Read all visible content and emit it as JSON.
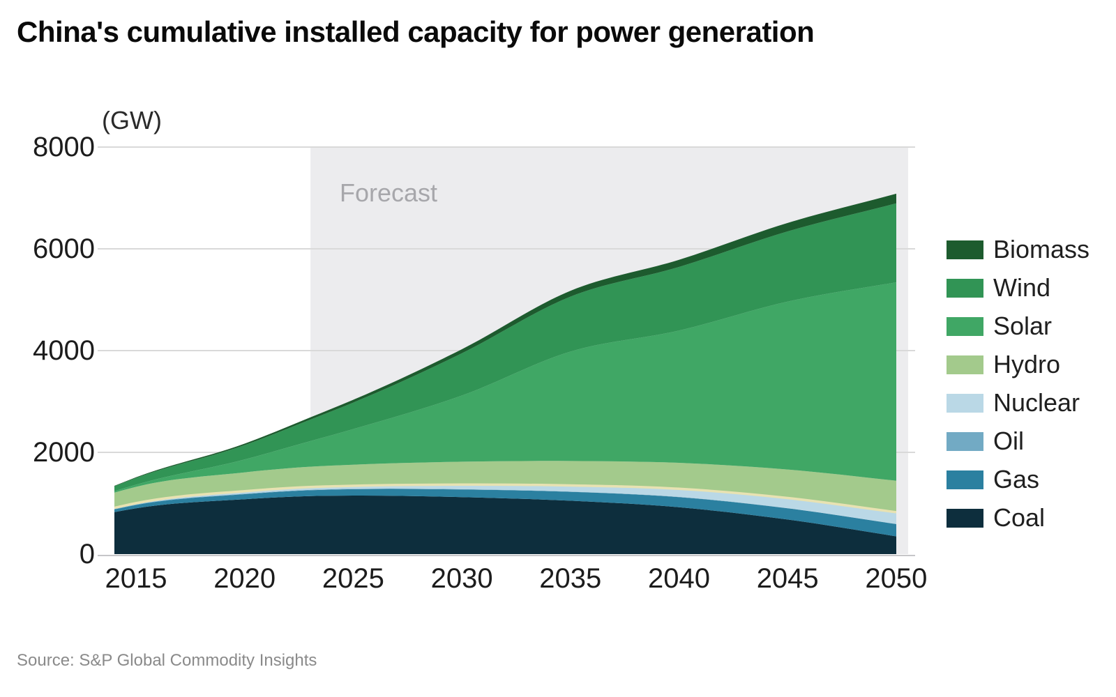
{
  "title": "China's cumulative installed capacity for power generation",
  "source_note": "Source: S&P Global Commodity Insights",
  "chart_data": {
    "type": "area",
    "stacked": true,
    "title": "China's cumulative installed capacity for power generation",
    "unit_label": "(GW)",
    "ylabel": "GW",
    "xlabel": "",
    "forecast_label": "Forecast",
    "forecast_start_year": 2023,
    "grid": "horizontal",
    "legend_position": "right",
    "xlim": [
      2014,
      2050
    ],
    "ylim": [
      0,
      8000
    ],
    "x": [
      2014,
      2015,
      2020,
      2023,
      2025,
      2030,
      2035,
      2040,
      2045,
      2050
    ],
    "x_ticks": [
      2015,
      2020,
      2025,
      2030,
      2035,
      2040,
      2045,
      2050
    ],
    "y_ticks": [
      0,
      2000,
      4000,
      6000,
      8000
    ],
    "series": [
      {
        "name": "Coal",
        "color": "#0d2e3d",
        "values": [
          825,
          900,
          1080,
          1140,
          1150,
          1120,
          1050,
          920,
          680,
          350
        ]
      },
      {
        "name": "Gas",
        "color": "#2b80a0",
        "values": [
          55,
          66,
          98,
          115,
          125,
          150,
          175,
          200,
          220,
          240
        ]
      },
      {
        "name": "Oil",
        "color": "#72aac4",
        "values": [
          9,
          9,
          9,
          8,
          8,
          6,
          5,
          4,
          3,
          3
        ]
      },
      {
        "name": "Nuclear",
        "color": "#bad8e6",
        "values": [
          20,
          27,
          50,
          55,
          60,
          90,
          120,
          160,
          200,
          230
        ]
      },
      {
        "name": "Hydro",
        "color": "#a3ca8c",
        "values": [
          300,
          320,
          370,
          400,
          415,
          450,
          480,
          510,
          560,
          620
        ]
      },
      {
        "name": "Solar",
        "color": "#40a765",
        "values": [
          28,
          43,
          253,
          500,
          700,
          1300,
          2150,
          2600,
          3300,
          3900
        ]
      },
      {
        "name": "Wind",
        "color": "#319455",
        "values": [
          96,
          131,
          282,
          420,
          520,
          830,
          1080,
          1250,
          1380,
          1550
        ]
      },
      {
        "name": "Biomass",
        "color": "#1d5b2e",
        "values": [
          9,
          13,
          29,
          45,
          55,
          80,
          115,
          140,
          165,
          190
        ]
      }
    ],
    "legend_order": [
      "Biomass",
      "Wind",
      "Solar",
      "Hydro",
      "Nuclear",
      "Oil",
      "Gas",
      "Coal"
    ],
    "styling": {
      "forecast_band_color": "#ececee",
      "forecast_label_color": "#a7a7ab",
      "gridline_color": "#d9d9d9",
      "baseline_color": "#c6c6c8",
      "axis_text_color": "#1c1c1c",
      "hydro_edge_highlight_color": "#e8e2b2",
      "title_color": "#0a0a0a",
      "source_text_color": "#8a8a8a"
    }
  }
}
